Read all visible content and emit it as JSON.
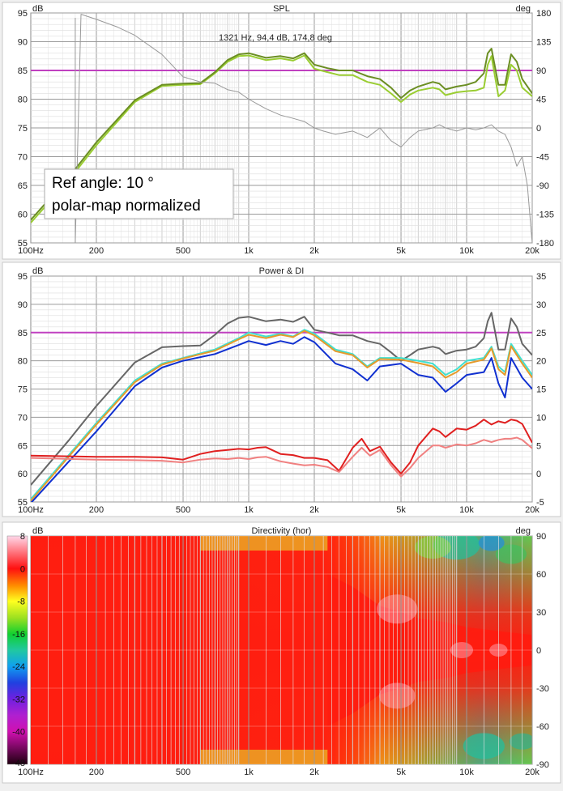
{
  "chart_data": [
    {
      "type": "line",
      "title": "SPL",
      "y_unit_left": "dB",
      "y_unit_right": "deg",
      "x_scale": "log",
      "xlim": [
        100,
        20000
      ],
      "ylim": [
        55,
        95
      ],
      "y2lim": [
        -180,
        180
      ],
      "x_ticks": [
        {
          "value": 100,
          "label": "100Hz"
        },
        {
          "value": 200,
          "label": "200"
        },
        {
          "value": 500,
          "label": "500"
        },
        {
          "value": 1000,
          "label": "1k"
        },
        {
          "value": 2000,
          "label": "2k"
        },
        {
          "value": 5000,
          "label": "5k"
        },
        {
          "value": 10000,
          "label": "10k"
        },
        {
          "value": 20000,
          "label": "20k"
        }
      ],
      "y_ticks": [
        55,
        60,
        65,
        70,
        75,
        80,
        85,
        90,
        95
      ],
      "y2_ticks": [
        -180,
        -135,
        -90,
        -45,
        0,
        45,
        90,
        135,
        180
      ],
      "cursor_readout": "1321 Hz, 94,4 dB, 174,8 deg",
      "annotation_lines": [
        "Ref angle: 10 °",
        "polar-map normalized"
      ],
      "reference_line": {
        "y": 85,
        "color": "#c040c0"
      },
      "grid": true,
      "series": [
        {
          "axis": "left",
          "color": "#9acd32",
          "x": [
            100,
            150,
            200,
            300,
            400,
            500,
            600,
            700,
            800,
            900,
            1000,
            1200,
            1400,
            1600,
            1800,
            2000,
            2300,
            2600,
            3000,
            3500,
            4000,
            4500,
            5000,
            5500,
            6000,
            7000,
            7500,
            8000,
            9000,
            10000,
            11000,
            12000,
            12500,
            13000,
            14000,
            15000,
            16000,
            17000,
            18000,
            20000
          ],
          "y": [
            58.5,
            66,
            72,
            79.5,
            82.3,
            82.5,
            82.6,
            84.5,
            86.5,
            87.5,
            87.6,
            86.8,
            87.1,
            86.7,
            87.6,
            85.3,
            84.7,
            84.2,
            84.2,
            83,
            82.5,
            81,
            79.5,
            80.8,
            81.5,
            82,
            81.7,
            80.7,
            81.2,
            81.4,
            81.5,
            82,
            86,
            87.5,
            80.5,
            81.5,
            86,
            85,
            82,
            80.5
          ]
        },
        {
          "axis": "left",
          "color": "#6b8e23",
          "x": [
            100,
            150,
            200,
            300,
            400,
            500,
            600,
            700,
            800,
            900,
            1000,
            1200,
            1400,
            1600,
            1800,
            2000,
            2300,
            2600,
            3000,
            3500,
            4000,
            4500,
            5000,
            5500,
            6000,
            7000,
            7500,
            8000,
            9000,
            10000,
            11000,
            12000,
            12500,
            13000,
            14000,
            15000,
            16000,
            17000,
            18000,
            20000
          ],
          "y": [
            59,
            66.5,
            72.5,
            79.8,
            82.5,
            82.7,
            82.8,
            84.7,
            86.8,
            87.8,
            88,
            87.2,
            87.5,
            87.1,
            88,
            86,
            85.4,
            85,
            85,
            84,
            83.5,
            82,
            80.2,
            81.5,
            82.2,
            83,
            82.7,
            81.7,
            82.2,
            82.5,
            83,
            84.5,
            88,
            88.8,
            82.5,
            82.5,
            87.8,
            86.5,
            83.5,
            81
          ]
        },
        {
          "axis": "right",
          "color": "#999999",
          "x": [
            160,
            170,
            200,
            250,
            300,
            400,
            500,
            600,
            700,
            800,
            900,
            1000,
            1200,
            1400,
            1600,
            1800,
            2000,
            2200,
            2500,
            3000,
            3500,
            4000,
            4500,
            5000,
            5500,
            6000,
            7000,
            7500,
            8000,
            9000,
            10000,
            11000,
            12000,
            13000,
            14000,
            15000,
            16000,
            17000,
            18000,
            19000,
            20000
          ],
          "y": [
            -180,
            178,
            170,
            158,
            145,
            115,
            80,
            72,
            70,
            60,
            56,
            45,
            30,
            20,
            15,
            10,
            0,
            -5,
            -10,
            -5,
            -15,
            0,
            -20,
            -30,
            -15,
            -5,
            0,
            5,
            0,
            -5,
            0,
            -3,
            0,
            5,
            -5,
            -10,
            -30,
            -60,
            -45,
            -90,
            -180
          ]
        }
      ]
    },
    {
      "type": "line",
      "title": "Power & DI",
      "y_unit_left": "dB",
      "x_scale": "log",
      "xlim": [
        100,
        20000
      ],
      "ylim": [
        55,
        95
      ],
      "y2lim": [
        -5,
        35
      ],
      "x_ticks": [
        {
          "value": 100,
          "label": "100Hz"
        },
        {
          "value": 200,
          "label": "200"
        },
        {
          "value": 500,
          "label": "500"
        },
        {
          "value": 1000,
          "label": "1k"
        },
        {
          "value": 2000,
          "label": "2k"
        },
        {
          "value": 5000,
          "label": "5k"
        },
        {
          "value": 10000,
          "label": "10k"
        },
        {
          "value": 20000,
          "label": "20k"
        }
      ],
      "y_ticks": [
        55,
        60,
        65,
        70,
        75,
        80,
        85,
        90,
        95
      ],
      "y2_ticks": [
        -5,
        0,
        5,
        10,
        15,
        20,
        25,
        30,
        35
      ],
      "reference_line": {
        "y": 85,
        "color": "#c040c0"
      },
      "grid": true,
      "series": [
        {
          "axis": "left",
          "color": "#666666",
          "x": [
            100,
            150,
            200,
            300,
            400,
            500,
            600,
            700,
            800,
            900,
            1000,
            1200,
            1400,
            1600,
            1800,
            2000,
            2300,
            2600,
            3000,
            3500,
            4000,
            4500,
            5000,
            5500,
            6000,
            7000,
            7500,
            8000,
            9000,
            10000,
            11000,
            12000,
            12500,
            13000,
            14000,
            15000,
            16000,
            17000,
            18000,
            20000
          ],
          "y": [
            58,
            66,
            72,
            79.7,
            82.4,
            82.6,
            82.7,
            84.6,
            86.6,
            87.6,
            87.8,
            87,
            87.3,
            86.9,
            87.8,
            85.5,
            85,
            84.5,
            84.5,
            83.5,
            83,
            81.5,
            80,
            81,
            82,
            82.5,
            82.2,
            81.2,
            81.8,
            82,
            82.5,
            84,
            87,
            88.5,
            82,
            82,
            87.5,
            86,
            83,
            81
          ]
        },
        {
          "axis": "left",
          "color": "#40e0d0",
          "x": [
            100,
            200,
            300,
            400,
            500,
            700,
            900,
            1000,
            1200,
            1400,
            1600,
            1800,
            2000,
            2500,
            3000,
            3500,
            4000,
            5000,
            6000,
            7000,
            8000,
            9000,
            10000,
            12000,
            13000,
            14000,
            15000,
            16000,
            18000,
            20000
          ],
          "y": [
            55.5,
            69,
            76.5,
            79.5,
            80.5,
            82,
            84,
            85,
            84.3,
            84.8,
            84.3,
            85.5,
            84.8,
            82,
            81.2,
            79,
            80.5,
            80.5,
            80,
            79.5,
            77.5,
            78.5,
            80,
            80.5,
            82.5,
            79,
            78,
            83,
            80,
            77.5
          ]
        },
        {
          "axis": "left",
          "color": "#e69a2a",
          "x": [
            100,
            200,
            300,
            400,
            500,
            700,
            900,
            1000,
            1200,
            1400,
            1600,
            1800,
            2000,
            2500,
            3000,
            3500,
            4000,
            5000,
            6000,
            7000,
            8000,
            9000,
            10000,
            12000,
            13000,
            14000,
            15000,
            16000,
            18000,
            20000
          ],
          "y": [
            55.2,
            68.7,
            76.2,
            79.3,
            80.4,
            81.8,
            83.8,
            84.6,
            84,
            84.6,
            84.2,
            85.3,
            84.5,
            81.7,
            81,
            78.8,
            80.3,
            80.2,
            79.6,
            79,
            77,
            78,
            79.5,
            80.2,
            82.2,
            78.5,
            77.5,
            82.6,
            79.5,
            77
          ]
        },
        {
          "axis": "left",
          "color": "#1030d0",
          "x": [
            100,
            200,
            300,
            400,
            500,
            700,
            900,
            1000,
            1200,
            1400,
            1600,
            1800,
            2000,
            2500,
            3000,
            3500,
            4000,
            5000,
            6000,
            7000,
            8000,
            9000,
            10000,
            12000,
            13000,
            14000,
            15000,
            16000,
            18000,
            20000
          ],
          "y": [
            54.8,
            67.5,
            75.5,
            78.8,
            80,
            81.2,
            82.8,
            83.5,
            82.8,
            83.5,
            83,
            84.2,
            83.3,
            79.5,
            78.5,
            76.5,
            79,
            79.5,
            77.5,
            77,
            74.5,
            76,
            77.5,
            78,
            80.5,
            76,
            73.5,
            80.5,
            77,
            75
          ]
        },
        {
          "axis": "right",
          "color": "#e02020",
          "x": [
            100,
            200,
            300,
            400,
            500,
            600,
            700,
            800,
            900,
            1000,
            1100,
            1200,
            1400,
            1600,
            1800,
            2000,
            2300,
            2600,
            3000,
            3300,
            3600,
            4000,
            4500,
            5000,
            5500,
            6000,
            7000,
            7500,
            8000,
            9000,
            10000,
            11000,
            12000,
            13000,
            14000,
            15000,
            16000,
            17000,
            18000,
            20000
          ],
          "y": [
            3.2,
            3,
            3,
            2.9,
            2.5,
            3.5,
            4,
            4.2,
            4.4,
            4.3,
            4.6,
            4.7,
            3.5,
            3.3,
            2.8,
            2.8,
            2.4,
            0.5,
            4.6,
            6.2,
            4,
            4.8,
            2,
            0,
            2,
            5,
            8,
            7.5,
            6.5,
            8,
            7.8,
            8.5,
            9.6,
            8.7,
            9.3,
            9,
            9.6,
            9.4,
            8.8,
            5.5
          ]
        },
        {
          "axis": "right",
          "color": "#f08080",
          "x": [
            100,
            200,
            300,
            400,
            500,
            600,
            700,
            800,
            900,
            1000,
            1100,
            1200,
            1400,
            1600,
            1800,
            2000,
            2300,
            2600,
            3000,
            3300,
            3600,
            4000,
            4500,
            5000,
            5500,
            6000,
            7000,
            7500,
            8000,
            9000,
            10000,
            11000,
            12000,
            13000,
            14000,
            15000,
            16000,
            17000,
            18000,
            20000
          ],
          "y": [
            2.8,
            2.5,
            2.4,
            2.3,
            2,
            2.5,
            2.7,
            2.6,
            2.8,
            2.6,
            2.9,
            3,
            2.2,
            1.8,
            1.5,
            1.6,
            1.2,
            0.3,
            3,
            4.6,
            3.2,
            4.2,
            1.5,
            -0.5,
            1,
            2.8,
            5,
            5,
            4.6,
            5.2,
            5,
            5.4,
            6,
            5.6,
            6,
            6.2,
            6.2,
            6.4,
            6,
            4.5
          ]
        }
      ]
    },
    {
      "type": "heatmap",
      "title": "Directivity (hor)",
      "y_unit_left": "dB",
      "y_unit_right": "deg",
      "x_scale": "log",
      "xlim": [
        100,
        20000
      ],
      "ylim": [
        -90,
        90
      ],
      "x_ticks": [
        {
          "value": 100,
          "label": "100Hz"
        },
        {
          "value": 200,
          "label": "200"
        },
        {
          "value": 500,
          "label": "500"
        },
        {
          "value": 1000,
          "label": "1k"
        },
        {
          "value": 2000,
          "label": "2k"
        },
        {
          "value": 5000,
          "label": "5k"
        },
        {
          "value": 10000,
          "label": "10k"
        },
        {
          "value": 20000,
          "label": "20k"
        }
      ],
      "y_ticks": [
        90,
        60,
        30,
        0,
        -30,
        -60,
        -90
      ],
      "colorscale_range": [
        -48,
        8
      ],
      "colorscale_ticks": [
        8,
        0,
        -8,
        -16,
        -24,
        -32,
        -40,
        -48
      ]
    }
  ]
}
